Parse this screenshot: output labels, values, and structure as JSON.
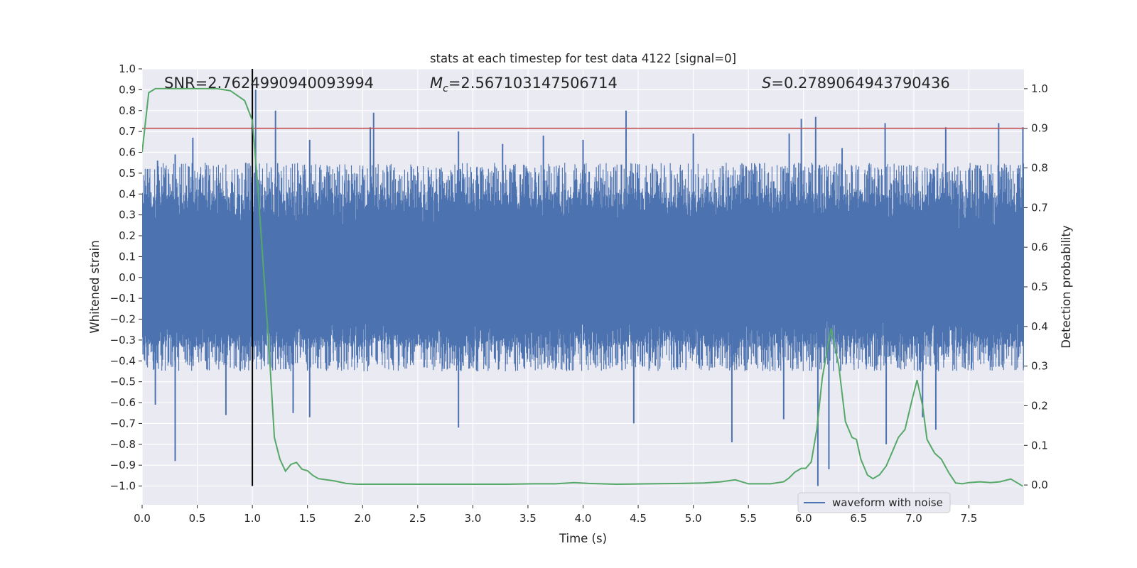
{
  "chart_data": {
    "type": "line",
    "title": "stats at each timestep for test data 4122 [signal=0]",
    "xlabel": "Time (s)",
    "ylabel_left": "Whitened strain",
    "ylabel_right": "Detection probability",
    "xlim": [
      0.0,
      8.0
    ],
    "ylim_left": [
      -1.09,
      1.0
    ],
    "ylim_right": [
      -0.05,
      1.05
    ],
    "x_ticks": [
      0.0,
      0.5,
      1.0,
      1.5,
      2.0,
      2.5,
      3.0,
      3.5,
      4.0,
      4.5,
      5.0,
      5.5,
      6.0,
      6.5,
      7.0,
      7.5
    ],
    "x_tick_labels": [
      "0.0",
      "0.5",
      "1.0",
      "1.5",
      "2.0",
      "2.5",
      "3.0",
      "3.5",
      "4.0",
      "4.5",
      "5.0",
      "5.5",
      "6.0",
      "6.5",
      "7.0",
      "7.5"
    ],
    "y_left_ticks": [
      1.0,
      0.9,
      0.8,
      0.7,
      0.6,
      0.5,
      0.4,
      0.3,
      0.2,
      0.1,
      0.0,
      -0.1,
      -0.2,
      -0.3,
      -0.4,
      -0.5,
      -0.6,
      -0.7,
      -0.8,
      -0.9,
      -1.0
    ],
    "y_left_tick_labels": [
      "1.0",
      "0.9",
      "0.8",
      "0.7",
      "0.6",
      "0.5",
      "0.4",
      "0.3",
      "0.2",
      "0.1",
      "0.0",
      "−0.1",
      "−0.2",
      "−0.3",
      "−0.4",
      "−0.5",
      "−0.6",
      "−0.7",
      "−0.8",
      "−0.9",
      "−1.0"
    ],
    "y_right_ticks": [
      1.0,
      0.9,
      0.8,
      0.7,
      0.6,
      0.5,
      0.4,
      0.3,
      0.2,
      0.1,
      0.0
    ],
    "y_right_tick_labels": [
      "1.0",
      "0.9",
      "0.8",
      "0.7",
      "0.6",
      "0.5",
      "0.4",
      "0.3",
      "0.2",
      "0.1",
      "0.0"
    ],
    "annotations": {
      "snr_text": "SNR=2.7624990940093994",
      "mc_symbol": "M",
      "mc_sub": "c",
      "mc_value": "=2.567103147506714",
      "s_symbol": "S",
      "s_value": "=0.2789064943790436"
    },
    "legend": {
      "label": "waveform with noise",
      "position": "lower-right"
    },
    "threshold_line": {
      "value": 0.9,
      "axis": "right"
    },
    "vertical_marker": {
      "x": 1.0,
      "ymin": -1.0,
      "ymax": 0.9
    },
    "waveform": {
      "name": "waveform with noise",
      "duration": 8.0,
      "envelope_min": -1.0,
      "envelope_max": 0.9,
      "typical_range": [
        -0.45,
        0.55
      ],
      "peaks": [
        {
          "t": 0.05,
          "v": 0.52
        },
        {
          "t": 0.14,
          "v": 0.56
        },
        {
          "t": 0.3,
          "v": 0.59
        },
        {
          "t": 0.46,
          "v": 0.67
        },
        {
          "t": 0.94,
          "v": 0.55
        },
        {
          "t": 1.03,
          "v": 0.9
        },
        {
          "t": 1.21,
          "v": 0.8
        },
        {
          "t": 1.52,
          "v": 0.66
        },
        {
          "t": 2.07,
          "v": 0.72
        },
        {
          "t": 2.1,
          "v": 0.79
        },
        {
          "t": 2.87,
          "v": 0.7
        },
        {
          "t": 3.27,
          "v": 0.64
        },
        {
          "t": 3.64,
          "v": 0.68
        },
        {
          "t": 4.0,
          "v": 0.66
        },
        {
          "t": 4.39,
          "v": 0.8
        },
        {
          "t": 5.0,
          "v": 0.69
        },
        {
          "t": 5.87,
          "v": 0.69
        },
        {
          "t": 5.98,
          "v": 0.76
        },
        {
          "t": 6.11,
          "v": 0.77
        },
        {
          "t": 6.35,
          "v": 0.62
        },
        {
          "t": 6.74,
          "v": 0.74
        },
        {
          "t": 7.29,
          "v": 0.72
        },
        {
          "t": 7.77,
          "v": 0.74
        },
        {
          "t": 7.99,
          "v": 0.72
        }
      ],
      "troughs": [
        {
          "t": 0.3,
          "v": -0.88
        },
        {
          "t": 0.12,
          "v": -0.61
        },
        {
          "t": 0.76,
          "v": -0.66
        },
        {
          "t": 1.37,
          "v": -0.65
        },
        {
          "t": 1.52,
          "v": -0.67
        },
        {
          "t": 2.87,
          "v": -0.72
        },
        {
          "t": 4.46,
          "v": -0.7
        },
        {
          "t": 5.35,
          "v": -0.79
        },
        {
          "t": 5.82,
          "v": -0.68
        },
        {
          "t": 6.13,
          "v": -1.0
        },
        {
          "t": 6.23,
          "v": -0.92
        },
        {
          "t": 6.75,
          "v": -0.8
        },
        {
          "t": 7.08,
          "v": -0.67
        },
        {
          "t": 7.2,
          "v": -0.73
        }
      ]
    },
    "detection_probability": {
      "name": "detection probability",
      "x": [
        0.0,
        0.06,
        0.12,
        0.3,
        0.5,
        0.68,
        0.8,
        0.93,
        1.0,
        1.05,
        1.1,
        1.15,
        1.2,
        1.25,
        1.3,
        1.35,
        1.4,
        1.45,
        1.5,
        1.55,
        1.6,
        1.65,
        1.75,
        1.85,
        1.95,
        2.2,
        2.5,
        2.75,
        3.0,
        3.3,
        3.55,
        3.75,
        3.92,
        4.05,
        4.3,
        4.6,
        4.9,
        5.1,
        5.25,
        5.38,
        5.5,
        5.7,
        5.82,
        5.87,
        5.92,
        5.98,
        6.02,
        6.07,
        6.12,
        6.17,
        6.25,
        6.32,
        6.38,
        6.44,
        6.48,
        6.52,
        6.58,
        6.63,
        6.69,
        6.75,
        6.8,
        6.86,
        6.92,
        6.98,
        7.03,
        7.08,
        7.12,
        7.19,
        7.25,
        7.32,
        7.38,
        7.44,
        7.5,
        7.6,
        7.7,
        7.78,
        7.88,
        7.99
      ],
      "values": [
        0.84,
        0.99,
        1.0,
        1.0,
        1.0,
        1.0,
        0.995,
        0.97,
        0.92,
        0.75,
        0.55,
        0.35,
        0.12,
        0.065,
        0.035,
        0.052,
        0.057,
        0.04,
        0.036,
        0.024,
        0.016,
        0.014,
        0.01,
        0.004,
        0.002,
        0.002,
        0.002,
        0.002,
        0.002,
        0.002,
        0.003,
        0.003,
        0.006,
        0.004,
        0.002,
        0.003,
        0.004,
        0.005,
        0.008,
        0.013,
        0.003,
        0.003,
        0.008,
        0.018,
        0.032,
        0.042,
        0.042,
        0.058,
        0.14,
        0.27,
        0.395,
        0.3,
        0.16,
        0.12,
        0.115,
        0.065,
        0.025,
        0.016,
        0.026,
        0.048,
        0.08,
        0.12,
        0.14,
        0.21,
        0.265,
        0.2,
        0.115,
        0.08,
        0.065,
        0.03,
        0.005,
        0.003,
        0.006,
        0.008,
        0.006,
        0.008,
        0.015,
        -0.003
      ]
    },
    "colors": {
      "background": "#eaeaf2",
      "grid": "#ffffff",
      "waveform": "#4c72b0",
      "probability": "#55a868",
      "threshold": "#c44e52",
      "marker": "#000000",
      "text": "#262626"
    }
  }
}
